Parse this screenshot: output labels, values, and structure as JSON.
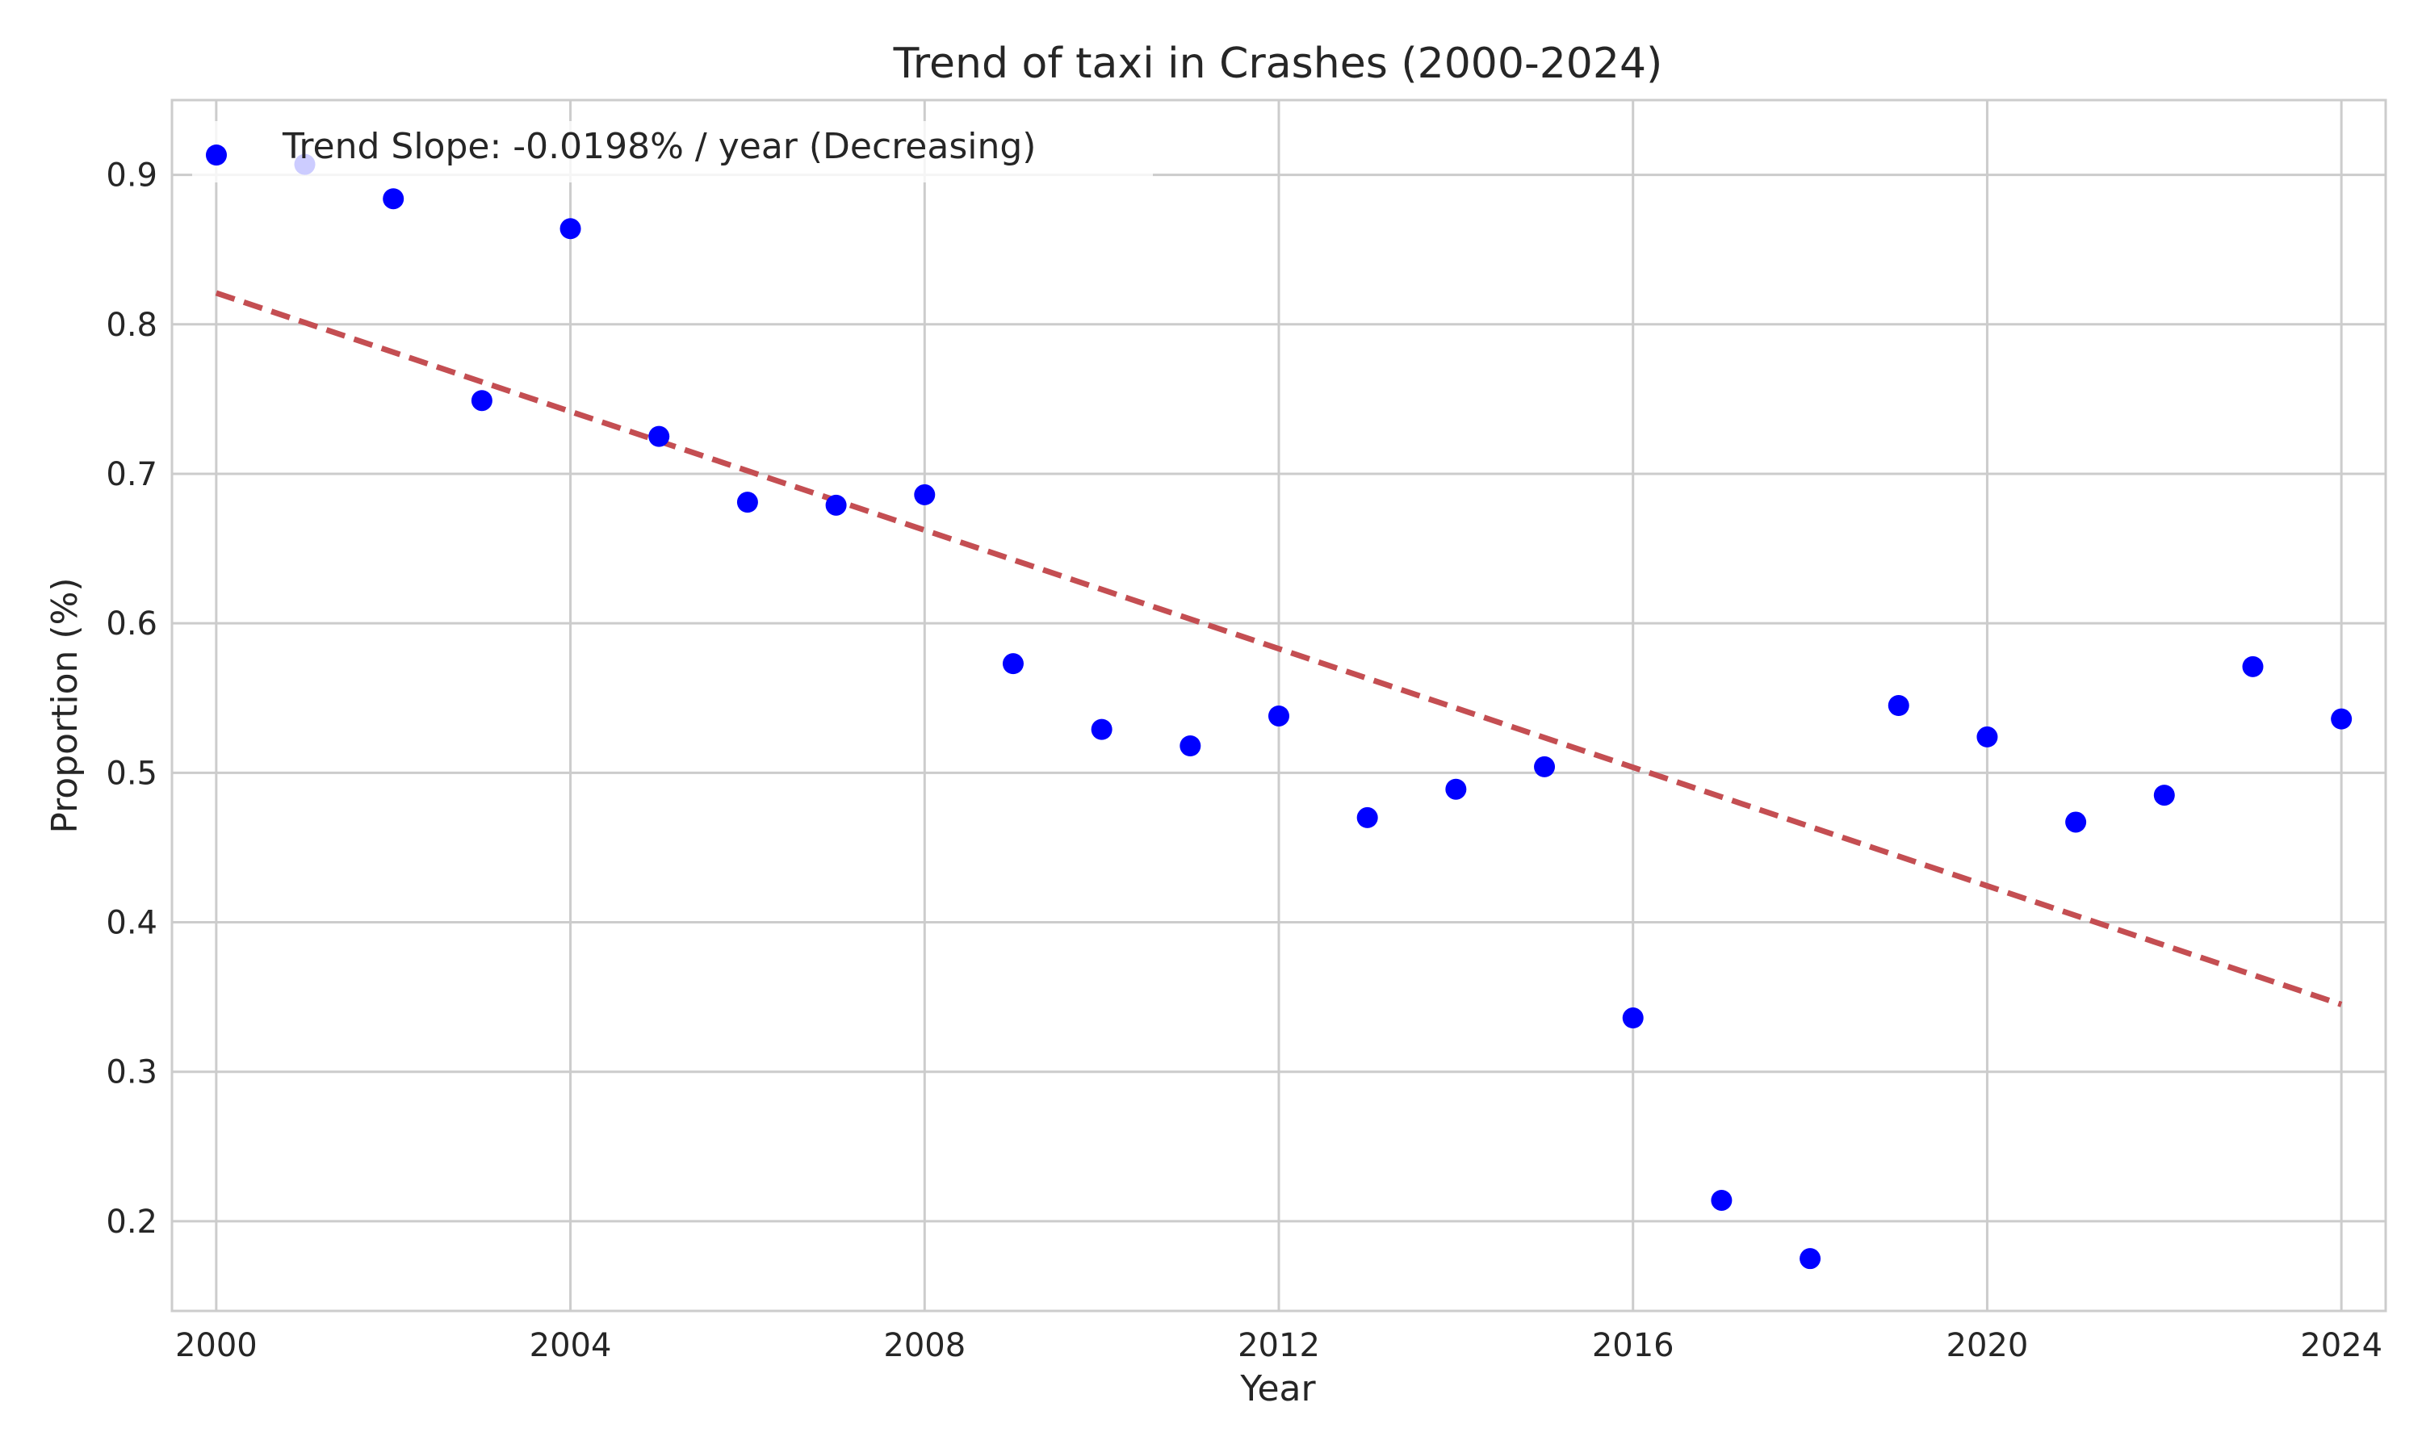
{
  "chart_data": {
    "type": "scatter",
    "title": "Trend of taxi in Crashes (2000-2024)",
    "xlabel": "Year",
    "ylabel": "Proportion (%)",
    "xlim": [
      1999.5,
      2024.5
    ],
    "ylim": [
      0.14,
      0.95
    ],
    "x_ticks": [
      2000,
      2004,
      2008,
      2012,
      2016,
      2020,
      2024
    ],
    "y_ticks": [
      0.2,
      0.3,
      0.4,
      0.5,
      0.6,
      0.7,
      0.8,
      0.9
    ],
    "grid": true,
    "legend_position": "top-left",
    "series": [
      {
        "name": "",
        "kind": "scatter",
        "color": "#0000ff",
        "x": [
          2000,
          2001,
          2002,
          2003,
          2004,
          2005,
          2006,
          2007,
          2008,
          2009,
          2010,
          2011,
          2012,
          2013,
          2014,
          2015,
          2016,
          2017,
          2018,
          2019,
          2020,
          2021,
          2022,
          2023,
          2024
        ],
        "y": [
          0.913,
          0.907,
          0.884,
          0.749,
          0.864,
          0.725,
          0.681,
          0.679,
          0.686,
          0.573,
          0.529,
          0.518,
          0.538,
          0.47,
          0.489,
          0.504,
          0.336,
          0.214,
          0.175,
          0.545,
          0.524,
          0.467,
          0.485,
          0.571,
          0.536
        ]
      },
      {
        "name": "Trend Slope: -0.0198% / year (Decreasing)",
        "kind": "line",
        "style": "dashed",
        "color": "#c44e52",
        "x": [
          2000,
          2024
        ],
        "y": [
          0.821,
          0.345
        ]
      }
    ]
  }
}
